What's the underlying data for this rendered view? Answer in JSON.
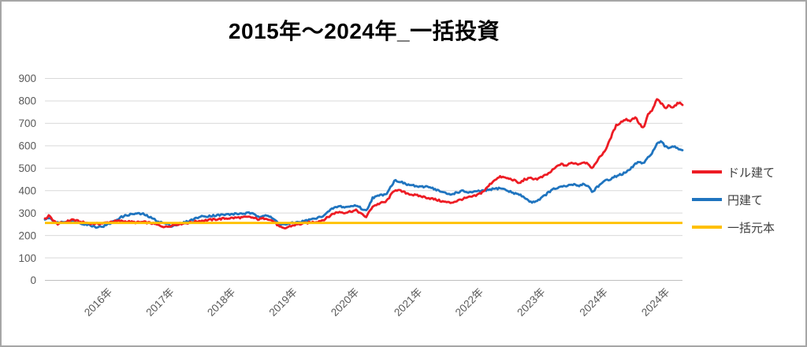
{
  "chart": {
    "title": "2015年〜2024年_一括投資",
    "colors": {
      "dollar": "#ed1c24",
      "yen": "#1f74bf",
      "principal": "#ffc000",
      "grid": "#d9d9d9",
      "axis_line": "#bfbfbf",
      "tick_text": "#595959",
      "frame_border": "#a6a6a6"
    },
    "legend": [
      {
        "id": "dollar",
        "label": "ドル建て"
      },
      {
        "id": "yen",
        "label": "円建て"
      },
      {
        "id": "principal",
        "label": "一括元本"
      }
    ]
  },
  "chart_data": {
    "type": "line",
    "title": "2015年〜2024年_一括投資",
    "grid": true,
    "legend_position": "right",
    "y_axis": {
      "min": 0,
      "max": 900,
      "step": 100,
      "tick_labels": [
        "0",
        "100",
        "200",
        "300",
        "400",
        "500",
        "600",
        "700",
        "800",
        "900"
      ]
    },
    "x_axis": {
      "ticks": [
        {
          "label": "2016年",
          "pos": 0.093
        },
        {
          "label": "2017年",
          "pos": 0.19
        },
        {
          "label": "2018年",
          "pos": 0.286
        },
        {
          "label": "2019年",
          "pos": 0.383
        },
        {
          "label": "2020年",
          "pos": 0.48
        },
        {
          "label": "2021年",
          "pos": 0.579
        },
        {
          "label": "2022年",
          "pos": 0.675
        },
        {
          "label": "2023年",
          "pos": 0.772
        },
        {
          "label": "2024年",
          "pos": 0.87
        },
        {
          "label": "2024年",
          "pos": 0.967
        }
      ]
    },
    "x": [
      0.0,
      0.006,
      0.019,
      0.031,
      0.043,
      0.056,
      0.068,
      0.081,
      0.093,
      0.105,
      0.118,
      0.13,
      0.143,
      0.155,
      0.167,
      0.18,
      0.19,
      0.198,
      0.211,
      0.229,
      0.242,
      0.26,
      0.283,
      0.304,
      0.322,
      0.335,
      0.347,
      0.359,
      0.368,
      0.375,
      0.383,
      0.393,
      0.403,
      0.415,
      0.428,
      0.437,
      0.446,
      0.452,
      0.462,
      0.471,
      0.48,
      0.489,
      0.499,
      0.504,
      0.514,
      0.527,
      0.535,
      0.549,
      0.558,
      0.566,
      0.576,
      0.589,
      0.601,
      0.613,
      0.626,
      0.636,
      0.644,
      0.654,
      0.665,
      0.675,
      0.684,
      0.69,
      0.698,
      0.706,
      0.715,
      0.725,
      0.735,
      0.744,
      0.752,
      0.762,
      0.772,
      0.781,
      0.791,
      0.799,
      0.808,
      0.818,
      0.827,
      0.837,
      0.845,
      0.853,
      0.859,
      0.865,
      0.874,
      0.881,
      0.888,
      0.896,
      0.903,
      0.911,
      0.918,
      0.926,
      0.933,
      0.939,
      0.946,
      0.953,
      0.96,
      0.967,
      0.973,
      0.979,
      0.985,
      0.993,
      1.0
    ],
    "series": [
      {
        "name": "ドル建て",
        "color": "#ed1c24",
        "values": [
          272,
          288,
          252,
          258,
          272,
          260,
          255,
          252,
          255,
          262,
          265,
          262,
          258,
          260,
          255,
          244,
          238,
          245,
          252,
          258,
          265,
          270,
          276,
          280,
          282,
          272,
          278,
          262,
          238,
          230,
          240,
          248,
          252,
          258,
          262,
          270,
          285,
          298,
          305,
          302,
          308,
          312,
          290,
          283,
          330,
          345,
          350,
          405,
          398,
          390,
          382,
          375,
          368,
          360,
          350,
          346,
          352,
          362,
          370,
          376,
          390,
          402,
          428,
          450,
          462,
          455,
          448,
          432,
          450,
          455,
          452,
          462,
          478,
          498,
          518,
          512,
          525,
          518,
          528,
          520,
          495,
          530,
          562,
          590,
          640,
          690,
          705,
          718,
          712,
          728,
          695,
          678,
          738,
          760,
          808,
          788,
          766,
          780,
          772,
          790,
          786
        ]
      },
      {
        "name": "円建て",
        "color": "#1f74bf",
        "values": [
          268,
          280,
          255,
          262,
          265,
          255,
          248,
          238,
          242,
          258,
          280,
          292,
          298,
          295,
          278,
          260,
          252,
          243,
          250,
          268,
          283,
          288,
          293,
          297,
          300,
          285,
          292,
          272,
          252,
          248,
          252,
          258,
          262,
          270,
          278,
          290,
          308,
          322,
          330,
          326,
          330,
          335,
          315,
          310,
          368,
          380,
          385,
          446,
          440,
          428,
          424,
          415,
          420,
          405,
          390,
          382,
          390,
          398,
          392,
          394,
          400,
          398,
          405,
          408,
          412,
          400,
          390,
          382,
          370,
          348,
          355,
          372,
          395,
          408,
          415,
          420,
          428,
          422,
          430,
          418,
          392,
          415,
          432,
          448,
          452,
          465,
          472,
          480,
          495,
          520,
          528,
          518,
          548,
          572,
          608,
          618,
          596,
          590,
          600,
          588,
          582
        ]
      },
      {
        "name": "一括元本",
        "color": "#ffc000",
        "constant": 256
      }
    ],
    "style": {
      "line_width": 2.8,
      "noise_amplitude": 4.2,
      "resample_points": 500
    }
  }
}
